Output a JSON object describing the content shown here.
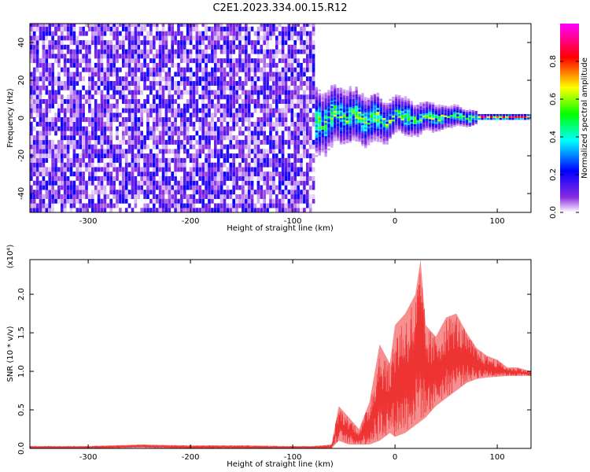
{
  "figure": {
    "title": "C2E1.2023.334.00.15.R12"
  },
  "chart_data": [
    {
      "type": "heatmap",
      "xlabel": "Height of straight line (km)",
      "ylabel": "Frequency (Hz)",
      "xlim": [
        -357,
        133
      ],
      "ylim": [
        -50,
        50
      ],
      "x_ticks": [
        -300,
        -200,
        -100,
        0,
        100
      ],
      "x_tick_labels": [
        "-300",
        "-200",
        "-100",
        "0",
        "100"
      ],
      "y_ticks": [
        -40,
        -20,
        0,
        20,
        40
      ],
      "y_tick_labels": [
        "-40",
        "-20",
        "0",
        "20",
        "40"
      ],
      "colorbar": {
        "label": "Normalized spectral amplitude",
        "range": [
          0,
          1
        ],
        "ticks": [
          0.0,
          0.2,
          0.4,
          0.6,
          0.8
        ],
        "tick_labels": [
          "0.0",
          "0.2",
          "0.4",
          "0.6",
          "0.8"
        ],
        "colors": [
          "#ffffff",
          "#8a2be2",
          "#0000ff",
          "#00ffff",
          "#00ff00",
          "#ffff00",
          "#ff0000",
          "#ff00ff"
        ]
      },
      "regions": [
        {
          "x_range": [
            -357,
            -80
          ],
          "freq_range": [
            -50,
            50
          ],
          "level": "low, broadband noise"
        },
        {
          "x_range": [
            -80,
            80
          ],
          "freq_range": [
            -15,
            15
          ],
          "level": "medium, spread around 0 Hz"
        },
        {
          "x_range": [
            80,
            133
          ],
          "freq_range": [
            -1,
            1
          ],
          "level": "high, narrow line at 0 Hz"
        }
      ],
      "ridge": {
        "x": [
          -80,
          -70,
          -60,
          -50,
          -40,
          -30,
          -20,
          -10,
          0,
          10,
          20,
          30,
          40,
          50,
          60,
          70,
          80,
          100,
          133
        ],
        "freq": [
          -2,
          -4,
          3,
          -1,
          2,
          -3,
          1,
          -4,
          2,
          0,
          -2,
          1,
          -1,
          0,
          1,
          -1,
          0,
          0,
          0
        ]
      }
    },
    {
      "type": "line",
      "xlabel": "Height of straight line (km)",
      "ylabel": "SNR (10 * v/v)",
      "y_multiplier": "(x10⁴)",
      "xlim": [
        -357,
        133
      ],
      "ylim": [
        0,
        2.45
      ],
      "x_ticks": [
        -300,
        -200,
        -100,
        0,
        100
      ],
      "x_tick_labels": [
        "-300",
        "-200",
        "-100",
        "0",
        "100"
      ],
      "y_ticks": [
        0.0,
        0.5,
        1.0,
        1.5,
        2.0
      ],
      "y_tick_labels": [
        "0.0",
        "0.5",
        "1.0",
        "1.5",
        "2.0"
      ],
      "color": "#ee3333",
      "envelope": {
        "x": [
          -357,
          -300,
          -250,
          -200,
          -150,
          -100,
          -80,
          -62,
          -55,
          -45,
          -35,
          -25,
          -15,
          -5,
          0,
          10,
          20,
          25,
          30,
          40,
          50,
          60,
          70,
          80,
          90,
          100,
          110,
          120,
          133
        ],
        "upper": [
          0.03,
          0.03,
          0.05,
          0.04,
          0.04,
          0.03,
          0.03,
          0.05,
          0.55,
          0.4,
          0.25,
          0.6,
          1.35,
          1.1,
          1.6,
          1.75,
          2.0,
          2.45,
          1.6,
          1.45,
          1.7,
          1.75,
          1.5,
          1.3,
          1.2,
          1.15,
          1.05,
          1.05,
          1.0
        ],
        "lower": [
          0.0,
          0.0,
          0.01,
          0.0,
          0.0,
          0.0,
          0.0,
          0.0,
          0.1,
          0.05,
          0.05,
          0.05,
          0.1,
          0.2,
          0.15,
          0.2,
          0.3,
          0.35,
          0.4,
          0.55,
          0.65,
          0.75,
          0.85,
          0.9,
          0.92,
          0.93,
          0.94,
          0.94,
          0.94
        ]
      }
    }
  ]
}
